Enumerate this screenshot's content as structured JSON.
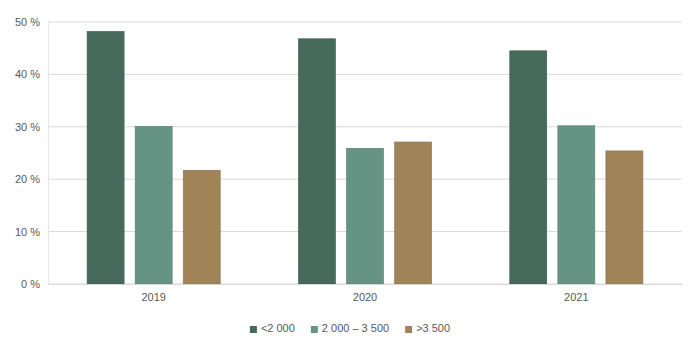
{
  "chart_data": {
    "type": "bar",
    "categories": [
      "2019",
      "2020",
      "2021"
    ],
    "series": [
      {
        "name": "<2 000",
        "color": "#466b5c",
        "values": [
          48.2,
          46.8,
          44.5
        ]
      },
      {
        "name": "2 000 – 3 500",
        "color": "#669484",
        "values": [
          30.1,
          25.9,
          30.2
        ]
      },
      {
        "name": ">3 500",
        "color": "#a08458",
        "values": [
          21.7,
          27.1,
          25.4
        ]
      }
    ],
    "ylim": [
      0,
      50
    ],
    "yticks": [
      {
        "value": 0,
        "label": "0 %"
      },
      {
        "value": 10,
        "label": "10 %"
      },
      {
        "value": 20,
        "label": "20 %"
      },
      {
        "value": 30,
        "label": "30 %"
      },
      {
        "value": 40,
        "label": "40 %"
      },
      {
        "value": 50,
        "label": "50 %"
      }
    ],
    "grid": true,
    "legend": "bottom"
  }
}
